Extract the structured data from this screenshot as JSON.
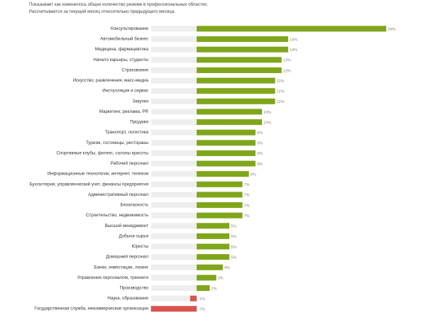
{
  "description": {
    "line1": "Показывает как изменилось общее количество резюме в профессиональных областях.",
    "line2": "Рассчитывается за текущий месяц относительно предыдущего месяца."
  },
  "colors": {
    "positive": "#7fa61a",
    "negative": "#d9534f",
    "track": "#eeeeee",
    "label": "#333333",
    "value": "#888888"
  },
  "chart_data": {
    "type": "bar",
    "orientation": "horizontal",
    "title": "",
    "xlabel": "",
    "ylabel": "",
    "unit": "%",
    "xlim": [
      -10,
      30
    ],
    "categories": [
      "Консультирование",
      "Автомобильный бизнес",
      "Медицина, фармацевтика",
      "Начало карьеры, студенты",
      "Страхование",
      "Искусство, развлечения, масс-медиа",
      "Инсталляция и сервис",
      "Закупки",
      "Маркетинг, реклама, PR",
      "Продажи",
      "Транспорт, логистика",
      "Туризм, гостиницы, рестораны",
      "Спортивные клубы, фитнес, салоны красоты",
      "Рабочий персонал",
      "Информационные технологии, интернет, телеком",
      "Бухгалтерия, управленческий учет, финансы предприятия",
      "Административный персонал",
      "Безопасность",
      "Строительство, недвижимость",
      "Высший менеджмент",
      "Добыча сырья",
      "Юристы",
      "Домашний персонал",
      "Банки, инвестиции, лизинг",
      "Управление персоналом, тренинги",
      "Производство",
      "Наука, образование",
      "Государственная служба, некоммерческие организации"
    ],
    "values": [
      29,
      14,
      14,
      13,
      13,
      12,
      12,
      12,
      10,
      10,
      9,
      9,
      9,
      9,
      8,
      7,
      7,
      7,
      7,
      5,
      5,
      5,
      5,
      4,
      3,
      2,
      -1,
      -7
    ],
    "value_labels": [
      "29%",
      "14%",
      "14%",
      "13%",
      "13%",
      "12%",
      "12%",
      "12%",
      "10%",
      "10%",
      "9%",
      "9%",
      "9%",
      "9%",
      "8%",
      "7%",
      "7%",
      "7%",
      "7%",
      "5%",
      "5%",
      "5%",
      "5%",
      "4%",
      "3%",
      "2%",
      "-1%",
      "-7%"
    ]
  }
}
